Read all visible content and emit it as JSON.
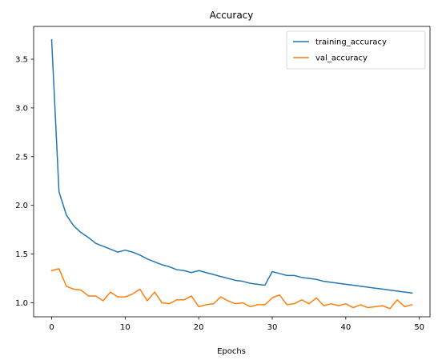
{
  "chart_data": {
    "type": "line",
    "title": "Accuracy",
    "xlabel": "Epochs",
    "ylabel": "",
    "xlim": [
      -2.45,
      51.45
    ],
    "ylim": [
      0.856,
      3.837
    ],
    "xticks": [
      0,
      10,
      20,
      30,
      40,
      50
    ],
    "xtick_labels": [
      "0",
      "10",
      "20",
      "30",
      "40",
      "50"
    ],
    "yticks": [
      1.0,
      1.5,
      2.0,
      2.5,
      3.0,
      3.5
    ],
    "ytick_labels": [
      "1.0",
      "1.5",
      "2.0",
      "2.5",
      "3.0",
      "3.5"
    ],
    "grid": false,
    "legend_position": "top-right",
    "x": [
      0,
      1,
      2,
      3,
      4,
      5,
      6,
      7,
      8,
      9,
      10,
      11,
      12,
      13,
      14,
      15,
      16,
      17,
      18,
      19,
      20,
      21,
      22,
      23,
      24,
      25,
      26,
      27,
      28,
      29,
      30,
      31,
      32,
      33,
      34,
      35,
      36,
      37,
      38,
      39,
      40,
      41,
      42,
      43,
      44,
      45,
      46,
      47,
      48,
      49
    ],
    "series": [
      {
        "name": "training_accuracy",
        "color": "#1f77b4",
        "values": [
          3.7,
          2.14,
          1.9,
          1.79,
          1.72,
          1.67,
          1.61,
          1.58,
          1.55,
          1.52,
          1.54,
          1.52,
          1.49,
          1.45,
          1.42,
          1.39,
          1.37,
          1.34,
          1.33,
          1.31,
          1.33,
          1.31,
          1.29,
          1.27,
          1.25,
          1.23,
          1.22,
          1.2,
          1.19,
          1.18,
          1.32,
          1.3,
          1.28,
          1.28,
          1.26,
          1.25,
          1.24,
          1.22,
          1.21,
          1.2,
          1.19,
          1.18,
          1.17,
          1.16,
          1.15,
          1.14,
          1.13,
          1.12,
          1.11,
          1.1
        ]
      },
      {
        "name": "val_accuracy",
        "color": "#ff7f0e",
        "values": [
          1.33,
          1.35,
          1.17,
          1.14,
          1.13,
          1.07,
          1.07,
          1.02,
          1.11,
          1.06,
          1.06,
          1.09,
          1.14,
          1.02,
          1.11,
          1.0,
          0.99,
          1.03,
          1.03,
          1.07,
          0.96,
          0.98,
          0.99,
          1.06,
          1.02,
          0.99,
          1.0,
          0.96,
          0.98,
          0.98,
          1.05,
          1.08,
          0.98,
          0.99,
          1.03,
          0.99,
          1.05,
          0.97,
          0.99,
          0.97,
          0.99,
          0.95,
          0.98,
          0.95,
          0.96,
          0.97,
          0.94,
          1.03,
          0.96,
          0.98
        ]
      }
    ]
  }
}
